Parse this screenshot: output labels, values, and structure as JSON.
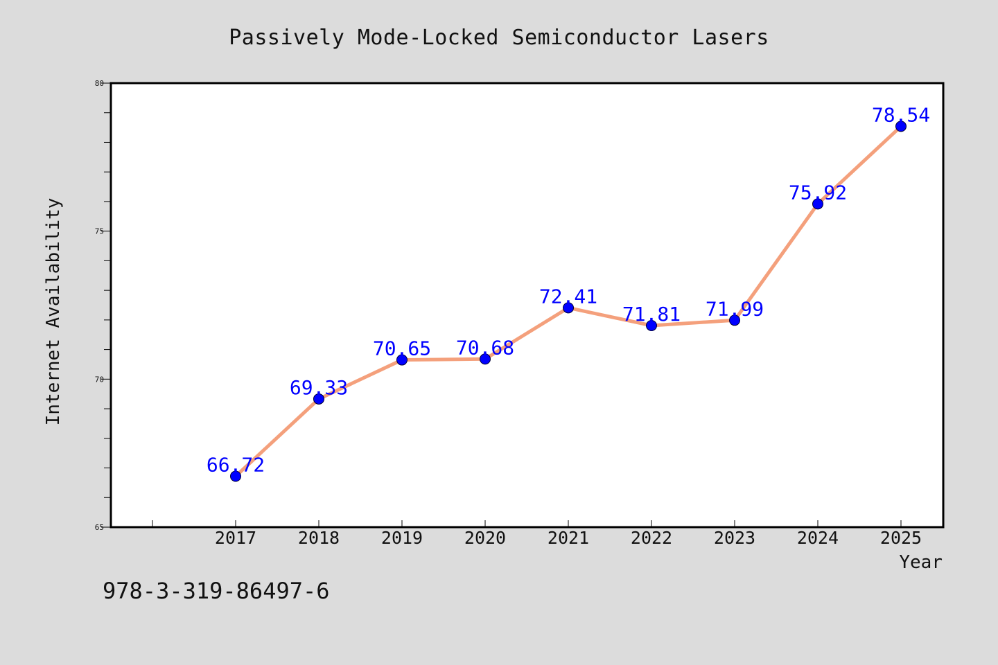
{
  "chart_data": {
    "type": "line",
    "title": "Passively Mode-Locked Semiconductor Lasers",
    "xlabel": "Year",
    "ylabel": "Internet Availability",
    "x": [
      "2017",
      "2018",
      "2019",
      "2020",
      "2021",
      "2022",
      "2023",
      "2024",
      "2025"
    ],
    "values": [
      66.72,
      69.33,
      70.65,
      70.68,
      72.41,
      71.81,
      71.99,
      75.92,
      78.54
    ],
    "data_labels": [
      "66.72",
      "69.33",
      "70.65",
      "70.68",
      "72.41",
      "71.81",
      "71.99",
      "75.92",
      "78.54"
    ],
    "ylim": [
      65,
      80
    ],
    "y_ticks": [
      "65",
      "70",
      "75",
      "80"
    ],
    "grid": false,
    "legend": "none",
    "line_color": "#f4a07c",
    "marker_color": "#0000ff",
    "label_color": "#0000ff"
  },
  "footer": {
    "identifier": "978-3-319-86497-6"
  }
}
